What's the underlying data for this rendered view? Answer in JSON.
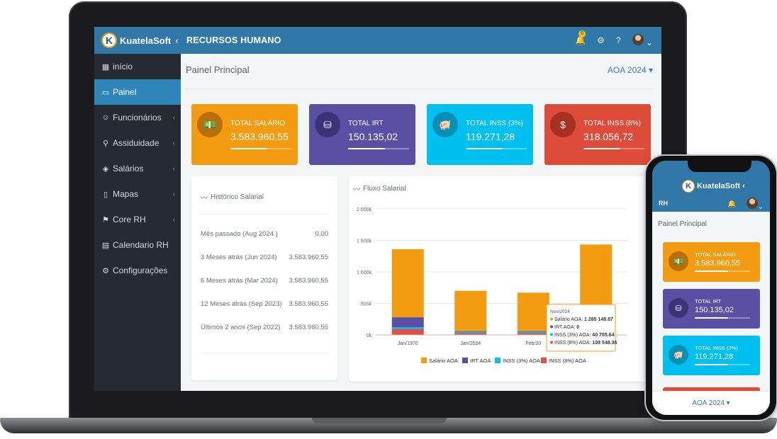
{
  "app": {
    "brand": "KuatelaSoft",
    "module": "RECURSOS HUMANO",
    "notification_count": "0",
    "collapse_icon": "chevron-left-icon"
  },
  "sidebar": {
    "items": [
      {
        "label": "início",
        "icon": "grid-icon",
        "active": false,
        "has_children": false
      },
      {
        "label": "Painel",
        "icon": "dashboard-icon",
        "active": true,
        "has_children": false
      },
      {
        "label": "Funcionários",
        "icon": "users-icon",
        "active": false,
        "has_children": true
      },
      {
        "label": "Assiduidade",
        "icon": "attendance-icon",
        "active": false,
        "has_children": true
      },
      {
        "label": "Salários",
        "icon": "money-icon",
        "active": false,
        "has_children": true
      },
      {
        "label": "Mapas",
        "icon": "document-icon",
        "active": false,
        "has_children": true
      },
      {
        "label": "Core RH",
        "icon": "flag-icon",
        "active": false,
        "has_children": true
      },
      {
        "label": "Calendario RH",
        "icon": "calendar-icon",
        "active": false,
        "has_children": false
      },
      {
        "label": "Configurações",
        "icon": "gear-icon",
        "active": false,
        "has_children": false
      }
    ]
  },
  "page": {
    "title": "Painel Principal",
    "year_select": "AOA 2024 ▾"
  },
  "cards": [
    {
      "label": "TOTAL SALÁRIO",
      "value": "3.583.960,55",
      "color": "#f39c12",
      "circle": "#b86f0a",
      "icon": "cash-icon",
      "glyph": "💵",
      "progress": 0.6
    },
    {
      "label": "TOTAL IRT",
      "value": "150.135,02",
      "color": "#5b4fa3",
      "circle": "#3d3378",
      "icon": "tax-icon",
      "glyph": "⛁",
      "progress": 0.6
    },
    {
      "label": "TOTAL INSS (3%)",
      "value": "119.271,28",
      "color": "#00c0ef",
      "circle": "#0590b3",
      "icon": "piggy-bank-icon",
      "glyph": "🐖",
      "progress": 0.6
    },
    {
      "label": "TOTAL INSS (8%)",
      "value": "318.056,72",
      "color": "#dd4b39",
      "circle": "#a8301f",
      "icon": "hand-money-icon",
      "glyph": "$",
      "progress": 0.6
    }
  ],
  "history": {
    "title": "Histórico Salarial",
    "rows": [
      {
        "label": "Mês passado (Aug 2024 )",
        "amount": "0,00"
      },
      {
        "label": "3 Meses atrás (Jun 2024)",
        "amount": "3.583.960,55"
      },
      {
        "label": "6 Meses atrás (Mar 2024)",
        "amount": "3.583.960,55"
      },
      {
        "label": "12 Meses atrás (Sep 2023)",
        "amount": "3.583.960,55"
      },
      {
        "label": "Últimos 2 anos (Sep 2022)",
        "amount": "3.583.960,55"
      }
    ]
  },
  "chart_data": {
    "type": "bar",
    "stacked": true,
    "title": "Fluxo Salarial",
    "categories": [
      "Jan/1970",
      "Jan/2024",
      "Feb/2024",
      "Nov/2024"
    ],
    "x_tick_labels": [
      "Jan/1970",
      "Jan/2024",
      "Feb/20",
      "4"
    ],
    "series": [
      {
        "name": "INSS (8%) AOA",
        "color": "#e74c3c",
        "values": [
          90000,
          30000,
          30000,
          108548.36
        ]
      },
      {
        "name": "INSS (3%) AOA",
        "color": "#00c0ef",
        "values": [
          30000,
          20000,
          20000,
          40705.64
        ]
      },
      {
        "name": "IRT AOA",
        "color": "#5b4fa3",
        "values": [
          160000,
          10000,
          10000,
          0
        ]
      },
      {
        "name": "Salário AOA",
        "color": "#f39c12",
        "values": [
          1080000,
          640000,
          610000,
          1285148.87
        ]
      }
    ],
    "legend_order": [
      "Salário AOA",
      "IRT AOA",
      "INSS (3%) AOA",
      "INSS (8%) AOA"
    ],
    "ylim": [
      0,
      2000000
    ],
    "yticks": [
      0,
      500000,
      1000000,
      1500000,
      2000000
    ],
    "ytick_labels": [
      "0k",
      "500k",
      "1 000k",
      "1 500k",
      "2 000k"
    ],
    "grid": true,
    "legend": "bottom",
    "tooltip": {
      "title": "Nov/2024",
      "lines": [
        {
          "label": "Salário AOA: ",
          "value": "1 285 148.87",
          "color": "#f39c12"
        },
        {
          "label": "IRT AOA: ",
          "value": "0",
          "color": "#5b4fa3"
        },
        {
          "label": "INSS (3%) AOA: ",
          "value": "40 705.64",
          "color": "#00c0ef"
        },
        {
          "label": "INSS (8%) AOA: ",
          "value": "108 548.36",
          "color": "#e74c3c"
        }
      ]
    }
  },
  "phone": {
    "brand": "KuatelaSoft",
    "module": "RH",
    "title": "Painel Principal",
    "year_select": "AOA 2024 ▾",
    "cards": [
      {
        "label": "TOTAL SALÁRIO",
        "value": "3.583.960,55"
      },
      {
        "label": "TOTAL IRT",
        "value": "150.135,02"
      },
      {
        "label": "TOTAL INSS (3%)",
        "value": "119.271,28"
      }
    ]
  }
}
